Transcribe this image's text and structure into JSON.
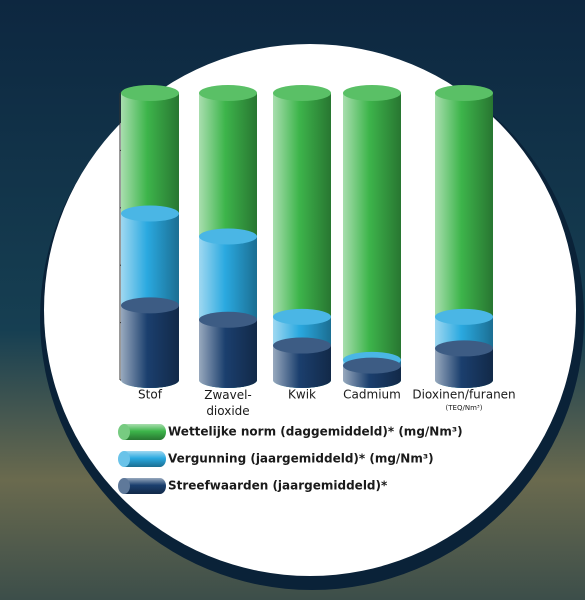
{
  "chart_data": {
    "type": "bar",
    "categories": [
      "Stof",
      "Zwavel-\ndioxide",
      "Kwik",
      "Cadmium",
      "Dioxinen/furanen"
    ],
    "category_notes": [
      null,
      null,
      null,
      null,
      "(TEQ/Nm³)"
    ],
    "series": [
      {
        "name": "Wettelijke norm (daggemiddeld)* (mg/Nm³)",
        "color": "#3db54b",
        "values": [
          5,
          5,
          5,
          5,
          5
        ]
      },
      {
        "name": "Vergunning (jaargemiddeld)* (mg/Nm³)",
        "color": "#2aa9e0",
        "values": [
          2.9,
          2.5,
          1.1,
          0.35,
          1.1
        ]
      },
      {
        "name": "Streefwaarden (jaargemiddeld)*",
        "color": "#1b3f6e",
        "values": [
          1.3,
          1.05,
          0.6,
          0.25,
          0.55
        ]
      }
    ],
    "ylim": [
      0,
      5
    ],
    "yticks": [
      0,
      1,
      2,
      3,
      4,
      5
    ]
  }
}
